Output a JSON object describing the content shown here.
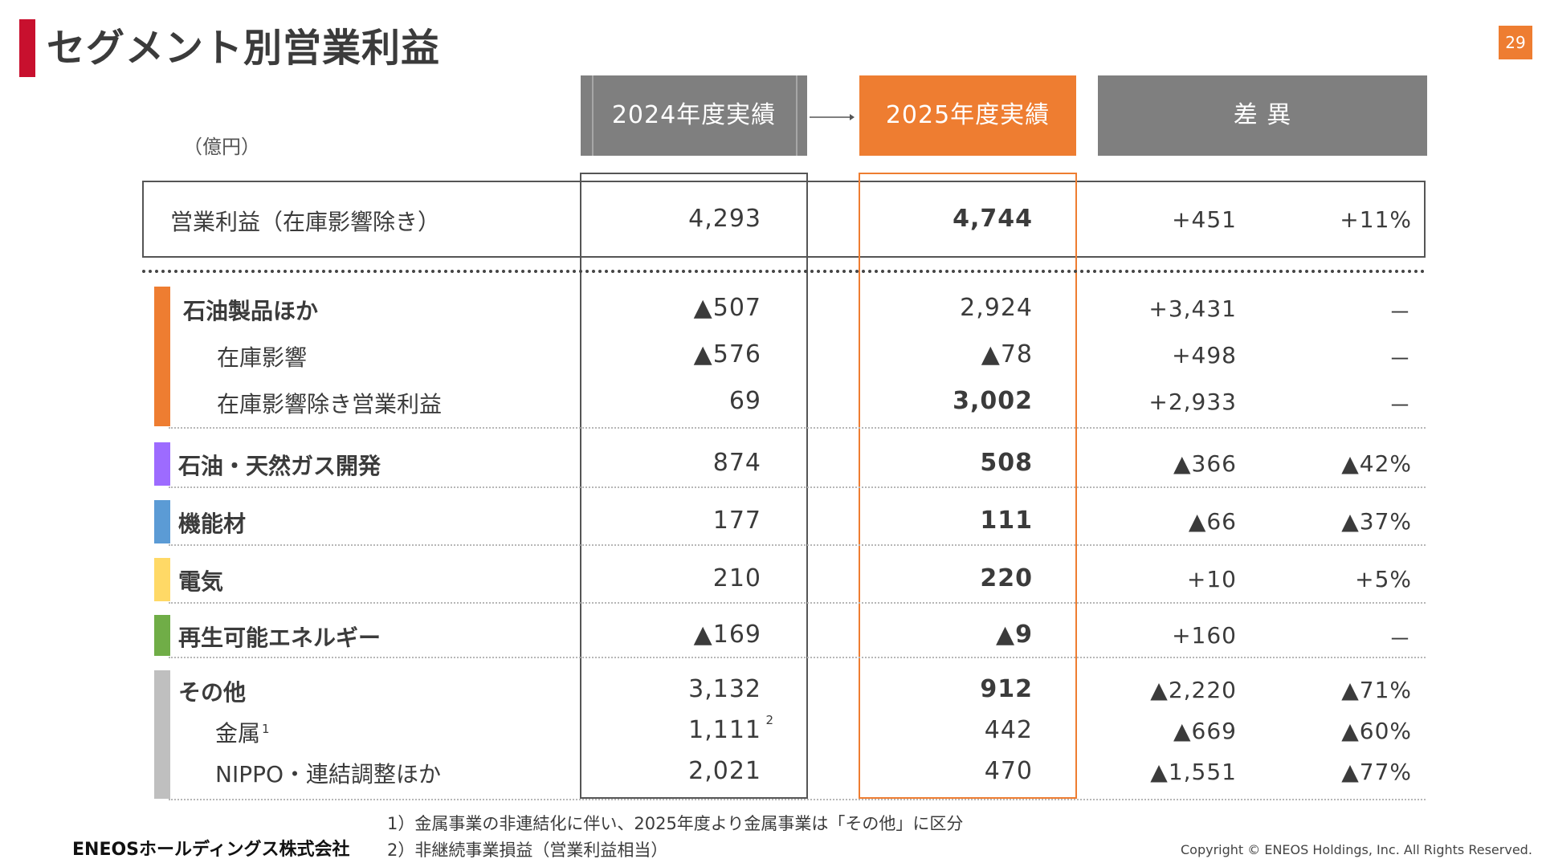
{
  "title": "セグメント別営業利益",
  "page_number": "29",
  "unit": "（億円）",
  "headers": {
    "fy2024": "2024年度実績",
    "fy2025": "2025年度実績",
    "diff": "差 異"
  },
  "colors": {
    "accent": "#ee7d31",
    "title_bar": "#c8102e",
    "header_gray": "#7f7f7f"
  },
  "rows": [
    {
      "label": "営業利益（在庫影響除き）",
      "fy2024": "4,293",
      "fy2025": "4,744",
      "diff": "+451",
      "pct": "+11%"
    },
    {
      "label": "石油製品ほか",
      "fy2024": "▲507",
      "fy2025": "2,924",
      "diff": "+3,431",
      "pct": "－",
      "color": "#ee7d31"
    },
    {
      "label": "在庫影響",
      "fy2024": "▲576",
      "fy2025": "▲78",
      "diff": "+498",
      "pct": "－"
    },
    {
      "label": "在庫影響除き営業利益",
      "fy2024": "69",
      "fy2025": "3,002",
      "diff": "+2,933",
      "pct": "－"
    },
    {
      "label": "石油・天然ガス開発",
      "fy2024": "874",
      "fy2025": "508",
      "diff": "▲366",
      "pct": "▲42%",
      "color": "#9d6bff"
    },
    {
      "label": "機能材",
      "fy2024": "177",
      "fy2025": "111",
      "diff": "▲66",
      "pct": "▲37%",
      "color": "#5b9bd5"
    },
    {
      "label": "電気",
      "fy2024": "210",
      "fy2025": "220",
      "diff": "+10",
      "pct": "+5%",
      "color": "#ffd966"
    },
    {
      "label": "再生可能エネルギー",
      "fy2024": "▲169",
      "fy2025": "▲9",
      "diff": "+160",
      "pct": "－",
      "color": "#70ad47"
    },
    {
      "label": "その他",
      "fy2024": "3,132",
      "fy2025": "912",
      "diff": "▲2,220",
      "pct": "▲71%",
      "color": "#bfbfbf"
    },
    {
      "label": "金属",
      "label_note": "1",
      "fy2024": "1,111",
      "fy2024_note": "2",
      "fy2025": "442",
      "diff": "▲669",
      "pct": "▲60%"
    },
    {
      "label": "NIPPO・連結調整ほか",
      "fy2024": "2,021",
      "fy2025": "470",
      "diff": "▲1,551",
      "pct": "▲77%"
    }
  ],
  "footnotes": [
    "1）金属事業の非連結化に伴い、2025年度より金属事業は「その他」に区分",
    "2）非継続事業損益（営業利益相当）"
  ],
  "logo_text": "ENEOSホールディングス株式会社",
  "copyright": "Copyright © ENEOS Holdings, Inc. All Rights Reserved."
}
